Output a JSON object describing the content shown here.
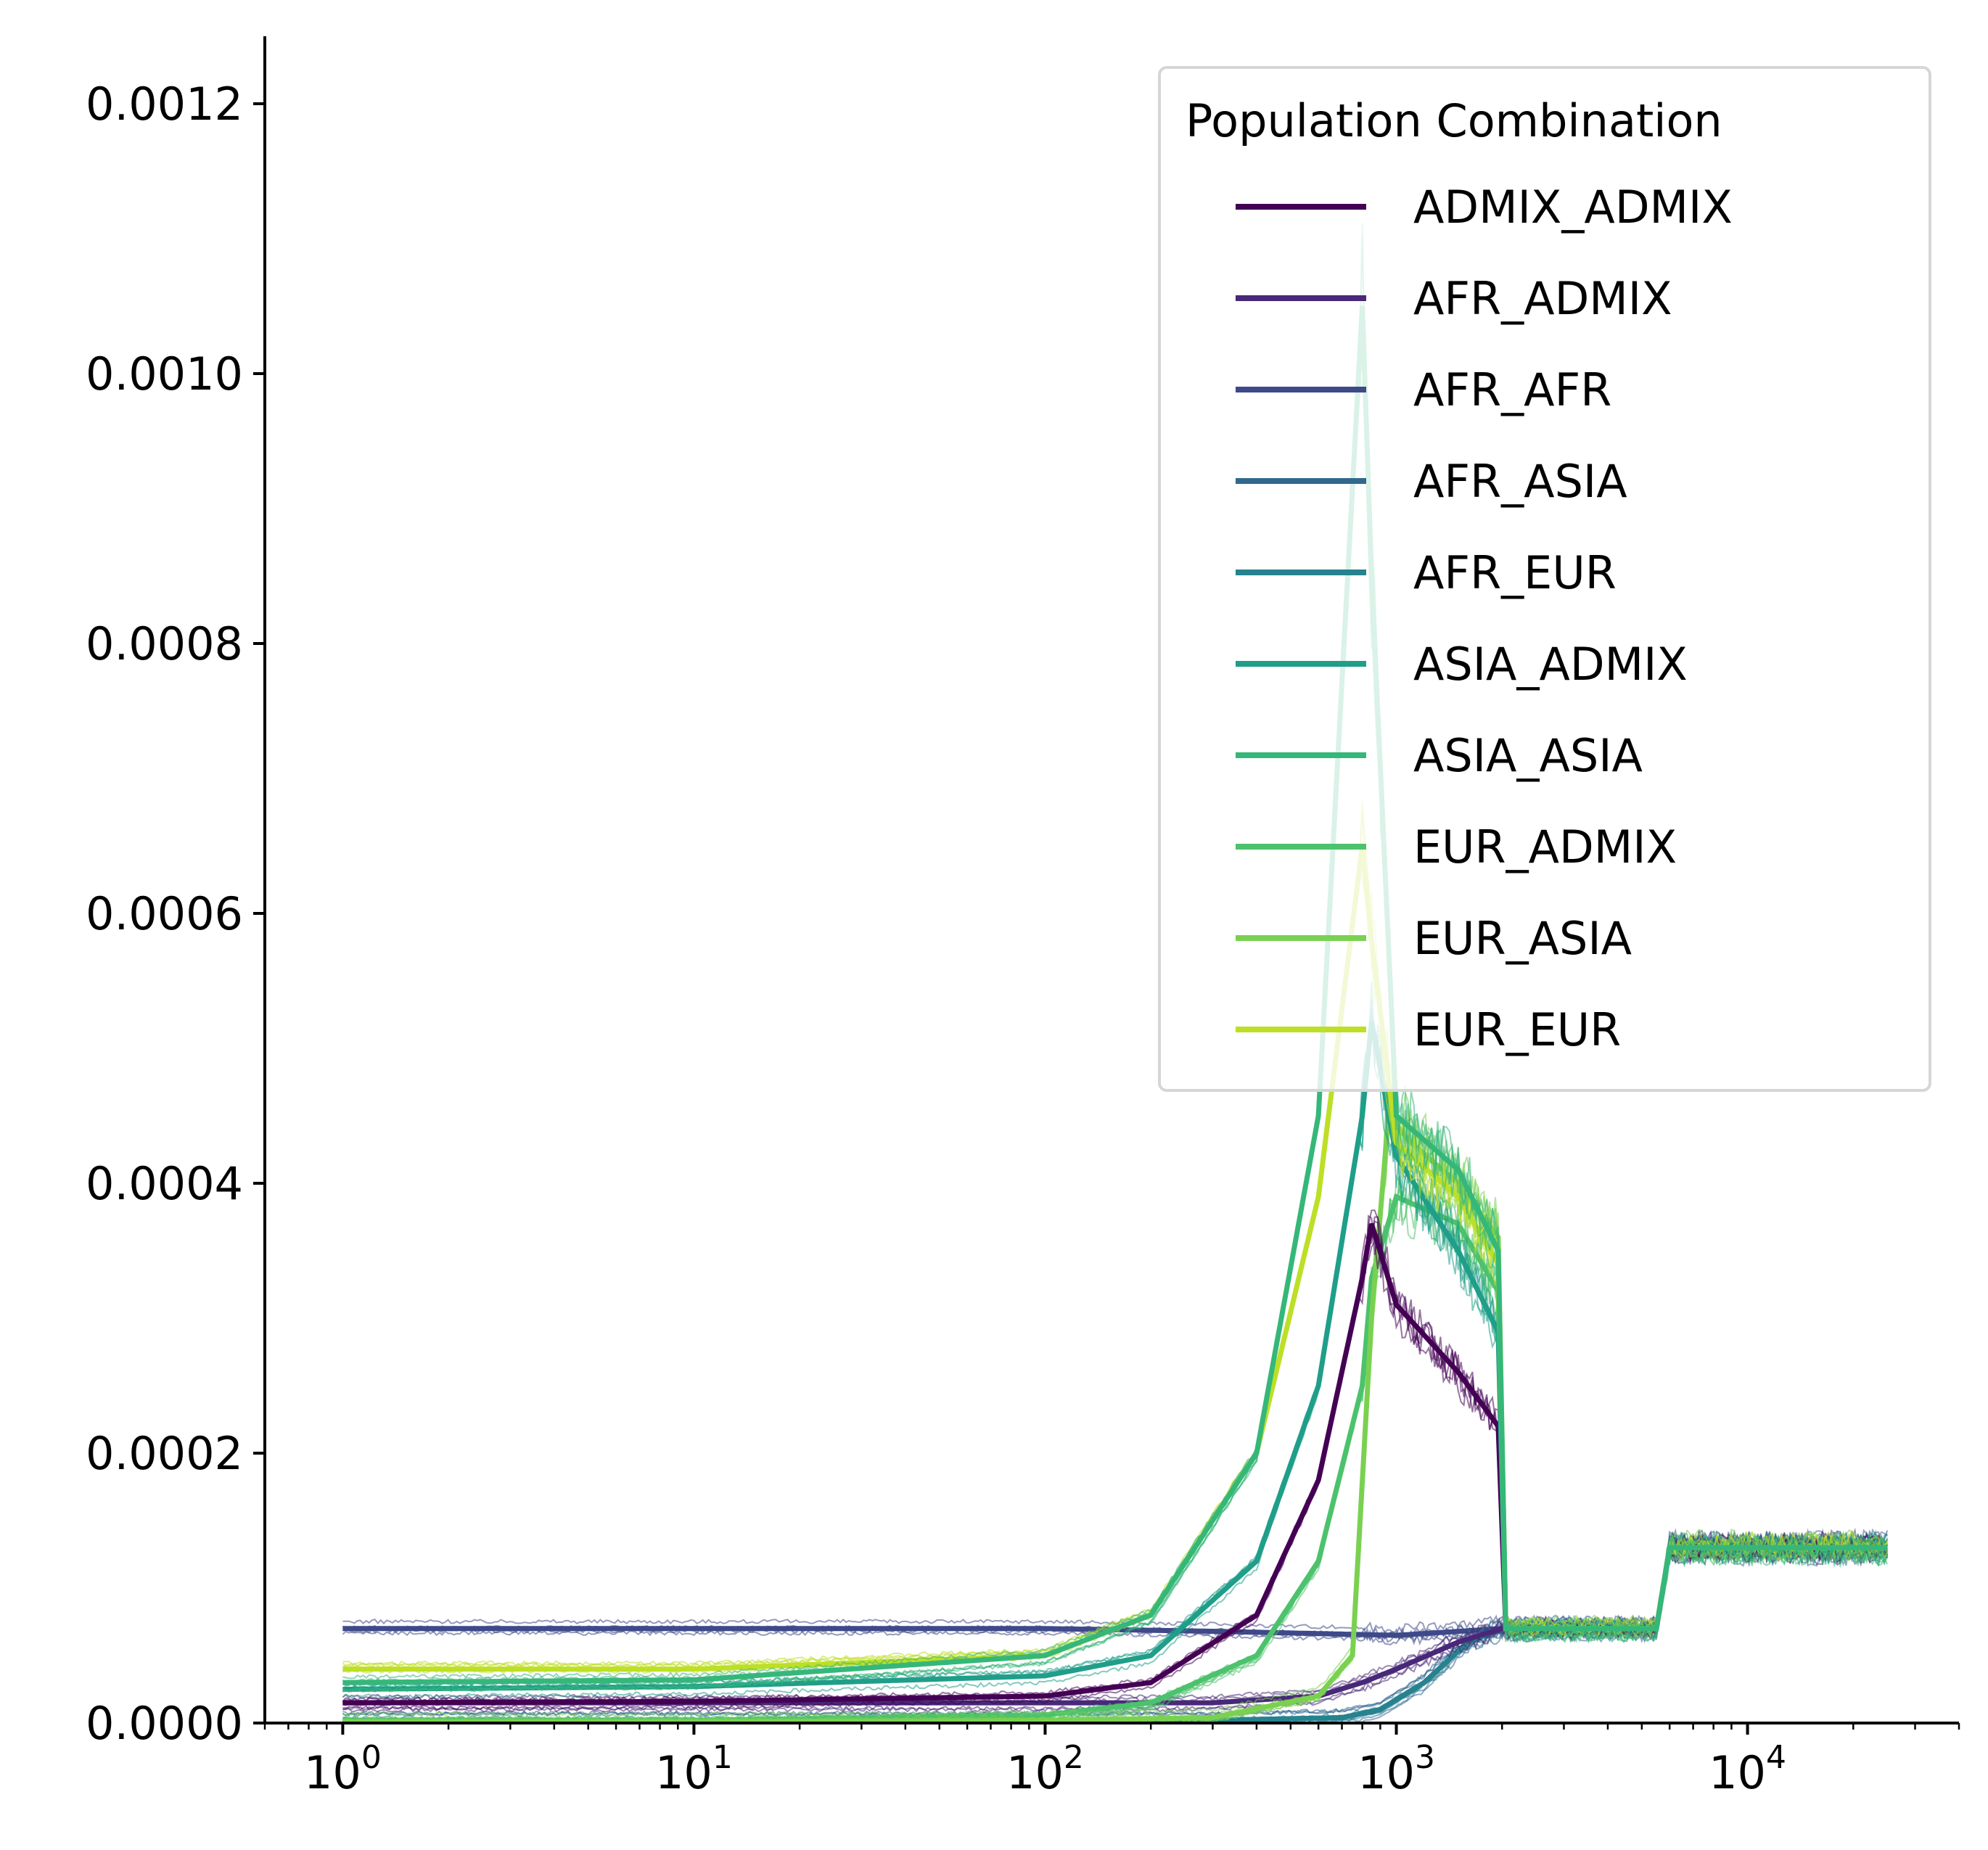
{
  "chart_data": {
    "type": "line",
    "title": "",
    "xlabel": "",
    "ylabel": "",
    "xscale": "log",
    "xlim": [
      0.6,
      40000
    ],
    "ylim": [
      0,
      0.00125
    ],
    "grid": false,
    "legend": {
      "title": "Population Combination",
      "placement": "top-right"
    },
    "x_ticks": [
      {
        "base": "10",
        "exp": "0",
        "value": 1
      },
      {
        "base": "10",
        "exp": "1",
        "value": 10
      },
      {
        "base": "10",
        "exp": "2",
        "value": 100
      },
      {
        "base": "10",
        "exp": "3",
        "value": 1000
      },
      {
        "base": "10",
        "exp": "4",
        "value": 10000
      }
    ],
    "y_ticks": [
      {
        "label": "0.0000",
        "value": 0
      },
      {
        "label": "0.0002",
        "value": 0.0002
      },
      {
        "label": "0.0004",
        "value": 0.0004
      },
      {
        "label": "0.0006",
        "value": 0.0006
      },
      {
        "label": "0.0008",
        "value": 0.0008
      },
      {
        "label": "0.0010",
        "value": 0.001
      },
      {
        "label": "0.0012",
        "value": 0.0012
      }
    ],
    "series": [
      {
        "name": "ADMIX_ADMIX",
        "color": "#440154",
        "x": [
          1,
          10,
          100,
          200,
          400,
          600,
          800,
          850,
          1000,
          1500,
          1950,
          2050,
          5500,
          6000,
          25000
        ],
        "y": [
          1.5e-05,
          1.6e-05,
          2e-05,
          3e-05,
          8e-05,
          0.00018,
          0.00033,
          0.00037,
          0.00031,
          0.00026,
          0.00022,
          7e-05,
          7e-05,
          0.00013,
          0.00013
        ]
      },
      {
        "name": "AFR_ADMIX",
        "color": "#482878",
        "x": [
          1,
          10,
          100,
          300,
          600,
          800,
          1000,
          1500,
          2000,
          5500,
          6000,
          25000
        ],
        "y": [
          1.5e-05,
          1.5e-05,
          1.5e-05,
          1.5e-05,
          2e-05,
          3e-05,
          4e-05,
          6e-05,
          7e-05,
          7e-05,
          0.00013,
          0.00013
        ]
      },
      {
        "name": "AFR_AFR",
        "color": "#3e4989",
        "x": [
          1,
          10,
          100,
          300,
          1000,
          2000,
          5500,
          6000,
          25000
        ],
        "y": [
          7e-05,
          7e-05,
          7e-05,
          6.8e-05,
          6.5e-05,
          7e-05,
          7e-05,
          0.00013,
          0.00013
        ]
      },
      {
        "name": "AFR_ASIA",
        "color": "#31688e",
        "x": [
          1,
          10,
          100,
          300,
          700,
          900,
          1200,
          1600,
          2000,
          5500,
          6000,
          25000
        ],
        "y": [
          2e-06,
          2e-06,
          2e-06,
          2e-06,
          4e-06,
          1e-05,
          3e-05,
          6e-05,
          7e-05,
          7e-05,
          0.00013,
          0.00013
        ]
      },
      {
        "name": "AFR_EUR",
        "color": "#26828e",
        "x": [
          1,
          10,
          100,
          300,
          700,
          900,
          1200,
          1600,
          2000,
          5500,
          6000,
          25000
        ],
        "y": [
          2e-06,
          2e-06,
          2e-06,
          2e-06,
          4e-06,
          1e-05,
          3e-05,
          6e-05,
          7e-05,
          7e-05,
          0.00013,
          0.00013
        ]
      },
      {
        "name": "ASIA_ADMIX",
        "color": "#1f9e89",
        "x": [
          1,
          10,
          100,
          200,
          400,
          600,
          800,
          850,
          1000,
          1500,
          1950,
          2050,
          5500,
          6000,
          25000
        ],
        "y": [
          2.5e-05,
          2.7e-05,
          3.5e-05,
          5e-05,
          0.00012,
          0.00025,
          0.00045,
          0.00052,
          0.00042,
          0.00035,
          0.00029,
          7e-05,
          7e-05,
          0.00013,
          0.00013
        ]
      },
      {
        "name": "ASIA_ASIA",
        "color": "#35b779",
        "x": [
          1,
          10,
          100,
          200,
          400,
          600,
          800,
          850,
          1000,
          1500,
          1950,
          2050,
          5500,
          6000,
          25000
        ],
        "y": [
          3e-05,
          3.2e-05,
          5e-05,
          8e-05,
          0.0002,
          0.00045,
          0.00105,
          0.00085,
          0.00045,
          0.00041,
          0.00035,
          7e-05,
          7e-05,
          0.00013,
          0.00013
        ]
      },
      {
        "name": "EUR_ADMIX",
        "color": "#4cc26c",
        "x": [
          1,
          10,
          100,
          200,
          400,
          600,
          800,
          850,
          1000,
          1500,
          1950,
          2050,
          5500,
          6000,
          25000
        ],
        "y": [
          2e-06,
          2e-06,
          6e-06,
          1.5e-05,
          5e-05,
          0.00012,
          0.00025,
          0.00033,
          0.00039,
          0.00037,
          0.00032,
          7e-05,
          7e-05,
          0.00013,
          0.00013
        ]
      },
      {
        "name": "EUR_ASIA",
        "color": "#7ad151",
        "x": [
          1,
          10,
          100,
          300,
          600,
          750,
          850,
          950,
          1100,
          1500,
          1950,
          2050,
          5500,
          6000,
          25000
        ],
        "y": [
          1e-06,
          1e-06,
          2e-06,
          4e-06,
          2e-05,
          5e-05,
          0.0003,
          0.00045,
          0.00043,
          0.0004,
          0.00036,
          7e-05,
          7e-05,
          0.00013,
          0.00013
        ]
      },
      {
        "name": "EUR_EUR",
        "color": "#bddf26",
        "x": [
          1,
          10,
          100,
          200,
          400,
          600,
          800,
          850,
          1000,
          1500,
          1950,
          2050,
          5500,
          6000,
          25000
        ],
        "y": [
          4e-05,
          4e-05,
          5e-05,
          8e-05,
          0.0002,
          0.00039,
          0.00065,
          0.00058,
          0.00043,
          0.00039,
          0.00034,
          7e-05,
          7e-05,
          0.00013,
          0.00013
        ]
      }
    ]
  }
}
